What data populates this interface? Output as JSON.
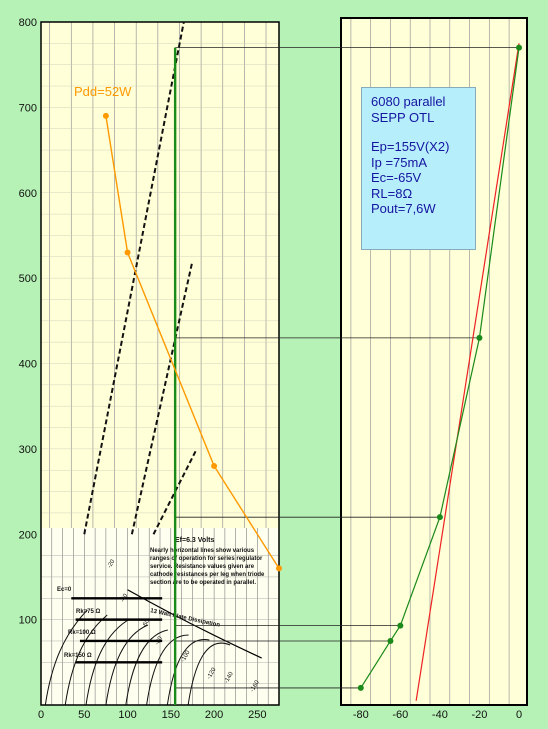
{
  "colors": {
    "background": "#b6f2b6",
    "plot_bg": "#ffffd8",
    "pdd_curve": "#ff9900",
    "load_line": "#1a8a1a",
    "transfer_curve": "#1a8a1a",
    "fit_line": "#ee2222",
    "text_blue": "#1515a0"
  },
  "info_box": {
    "line1": "6080 parallel",
    "line2": "SEPP OTL",
    "ep": "Ep=155V(X2)",
    "ip": "Ip =75mA",
    "ec": "Ec=-65V",
    "rl": "RL=8Ω",
    "pout": "Pout=7,6W"
  },
  "chart_data": [
    {
      "type": "line",
      "title": "",
      "xlabel": "",
      "ylabel": "",
      "xlim": [
        0,
        275
      ],
      "ylim": [
        0,
        800
      ],
      "x_ticks": [
        "0",
        "50",
        "100",
        "150",
        "200",
        "250"
      ],
      "y_ticks": [
        "100",
        "200",
        "300",
        "400",
        "500",
        "600",
        "700",
        "800"
      ],
      "grid": true,
      "series": [
        {
          "name": "Pdd=52W",
          "label": "Pdd=52W",
          "points": [
            [
              75,
              690
            ],
            [
              100,
              530
            ],
            [
              200,
              280
            ],
            [
              275,
              160
            ]
          ]
        },
        {
          "name": "",
          "points": [
            [
              155,
              0
            ],
            [
              155,
              770
            ]
          ]
        }
      ],
      "datasheet_inset": {
        "heading": "Ef=6.3 Volts",
        "note_line1": "Nearly horizontal lines show various",
        "note_line2": "ranges of operation for series regulator",
        "note_line3": "service. Resistance values given are",
        "note_line4": "cathode resistances per leg when triode",
        "note_line5": "section are to be operated in parallel.",
        "ec0_label": "Ec=0",
        "rk75_label": "Rk=75 Ω",
        "rk100_label": "Rk=100 Ω",
        "rk150_label": "Rk=150 Ω",
        "dissipation_label": "13 Watt Plate Dissipation",
        "curve_labels": [
          "-20",
          "-40",
          "-60",
          "-80",
          "-100",
          "-120",
          "-140",
          "-160"
        ]
      }
    },
    {
      "type": "line",
      "title": "",
      "xlabel": "",
      "ylabel": "",
      "xlim": [
        -90,
        0
      ],
      "ylim": [
        0,
        800
      ],
      "x_ticks": [
        "-80",
        "-60",
        "-40",
        "-20",
        "0"
      ],
      "grid": true,
      "series": [
        {
          "name": "",
          "points": [
            [
              -80,
              20
            ],
            [
              -65,
              75
            ],
            [
              -60,
              93
            ],
            [
              -40,
              220
            ],
            [
              -20,
              430
            ],
            [
              0,
              770
            ]
          ]
        },
        {
          "name": "",
          "points": [
            [
              -52,
              5
            ],
            [
              0,
              775
            ]
          ]
        }
      ]
    }
  ]
}
